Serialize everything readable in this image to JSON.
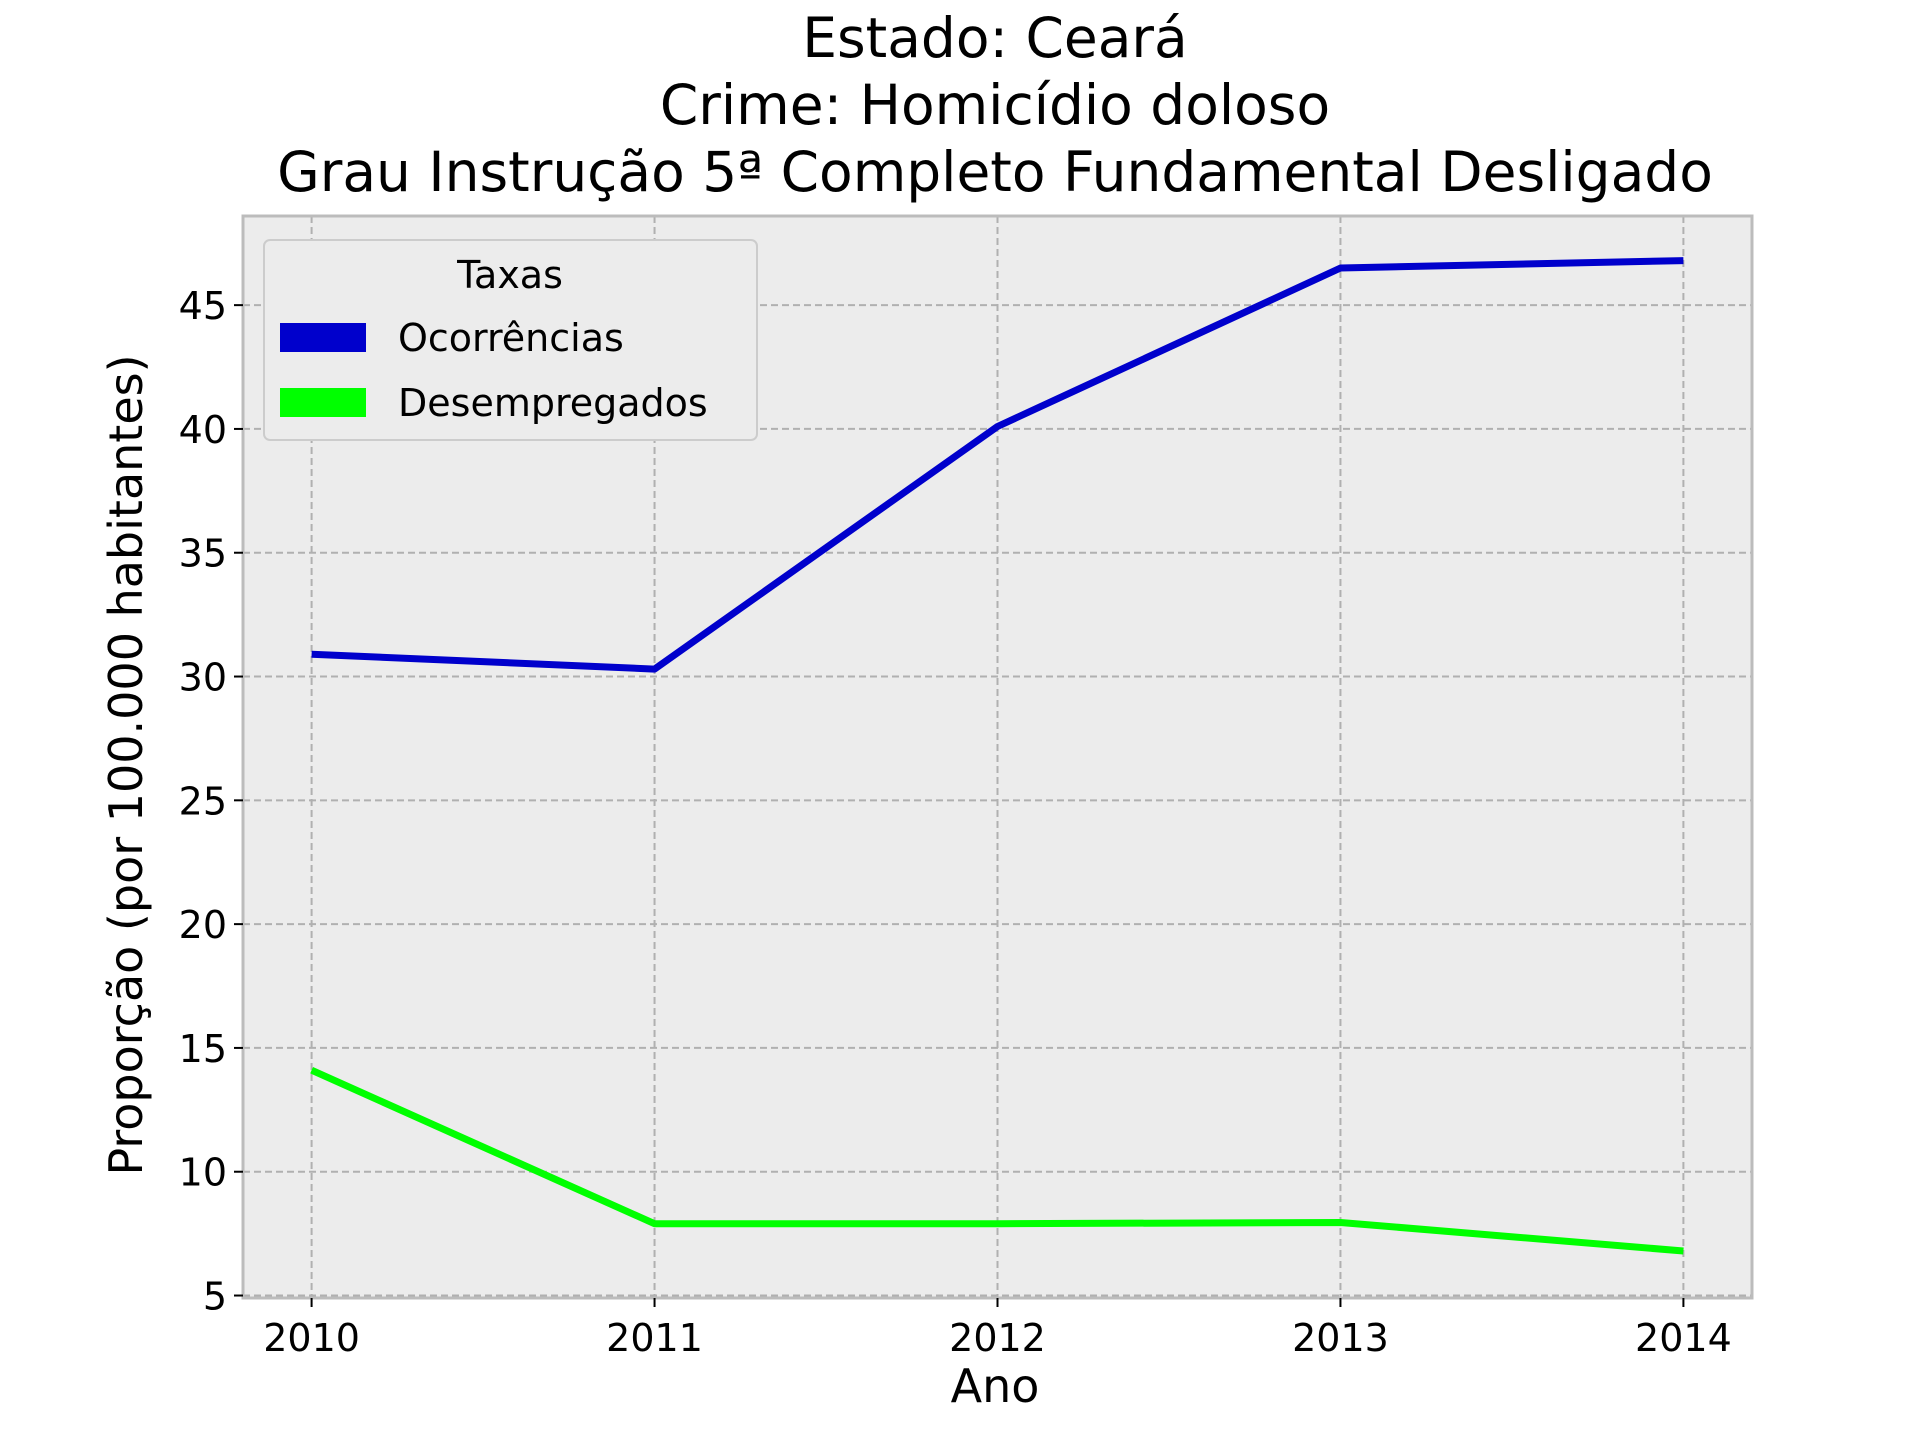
{
  "chart_data": {
    "type": "line",
    "title_lines": [
      "Estado: Ceará",
      "Crime: Homicídio doloso",
      "Grau Instrução  5ª Completo Fundamental   Desligado"
    ],
    "xlabel": "Ano",
    "ylabel": "Proporção (por 100.000 habitantes)",
    "x": [
      2010,
      2011,
      2012,
      2013,
      2014
    ],
    "x_tick_labels": [
      "2010",
      "2011",
      "2012",
      "2013",
      "2014"
    ],
    "xlim": [
      2009.8,
      2014.2
    ],
    "y_ticks": [
      5,
      10,
      15,
      20,
      25,
      30,
      35,
      40,
      45
    ],
    "y_tick_labels": [
      "5",
      "10",
      "15",
      "20",
      "25",
      "30",
      "35",
      "40",
      "45"
    ],
    "ylim": [
      4.9,
      48.6
    ],
    "grid": true,
    "legend": {
      "title": "Taxas",
      "placement": "top-left"
    },
    "series": [
      {
        "name": "Ocorrências",
        "color": "#0000cc",
        "values": [
          30.9,
          30.3,
          40.1,
          46.5,
          46.8
        ]
      },
      {
        "name": "Desempregados",
        "color": "#00ff00",
        "values": [
          14.1,
          7.9,
          7.9,
          7.95,
          6.8
        ]
      }
    ],
    "colors": {
      "plot_background": "#ececec",
      "grid": "#b0b0b0",
      "frame": "#bcbcbc"
    }
  }
}
